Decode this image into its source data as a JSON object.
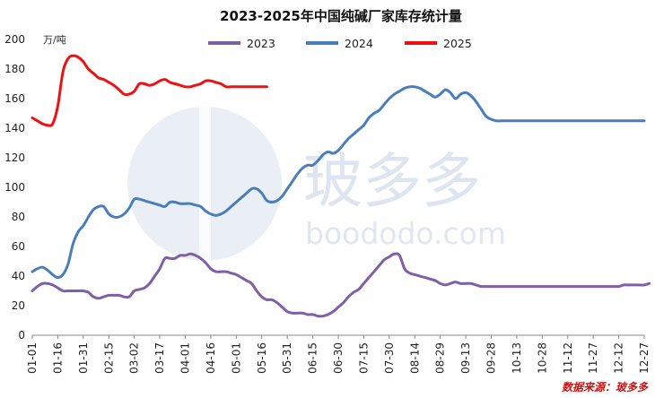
{
  "chart_data": {
    "type": "line",
    "title": "2023-2025年中国纯碱厂家库存统计量",
    "unit": "万/吨",
    "ylim": [
      0,
      200
    ],
    "yticks": [
      0,
      20,
      40,
      60,
      80,
      100,
      120,
      140,
      160,
      180,
      200
    ],
    "grid": false,
    "legend_position": "top",
    "x_tick_labels": [
      "01-01",
      "01-16",
      "01-31",
      "02-15",
      "03-02",
      "03-17",
      "04-01",
      "04-16",
      "05-01",
      "05-16",
      "05-31",
      "06-15",
      "06-30",
      "07-15",
      "07-30",
      "08-14",
      "08-29",
      "09-13",
      "09-28",
      "10-13",
      "10-28",
      "11-12",
      "11-27",
      "12-12",
      "12-27"
    ],
    "series": [
      {
        "name": "2023",
        "color": "#7f5fa8",
        "x": [
          0,
          3,
          6,
          9,
          12,
          15,
          18,
          21,
          24,
          27,
          30,
          33,
          36,
          39,
          42,
          45,
          48,
          51,
          54,
          57,
          60,
          63,
          66,
          69,
          72,
          75,
          78,
          81,
          84,
          87,
          90,
          93,
          96,
          99,
          102,
          105,
          108,
          111,
          114,
          117,
          120,
          123,
          126,
          129,
          132,
          135,
          138,
          141,
          144,
          147,
          150,
          153,
          156,
          159,
          162,
          165,
          168,
          171,
          174,
          177,
          180,
          183,
          186,
          189,
          192,
          195,
          198,
          201,
          204,
          207,
          210,
          213,
          216,
          219,
          222,
          225,
          228,
          231,
          234,
          237,
          240,
          243,
          246,
          249,
          252,
          255,
          258,
          261,
          264,
          267,
          270,
          273,
          276,
          279,
          282,
          285,
          288,
          291,
          294,
          297,
          300,
          303,
          306,
          309,
          312,
          315,
          318,
          321,
          324,
          327,
          330,
          333,
          336,
          339,
          342,
          345,
          348,
          351,
          354,
          357,
          360,
          363
        ],
        "values": [
          30,
          33,
          35,
          35,
          34,
          32,
          30,
          30,
          30,
          30,
          30,
          29,
          26,
          25,
          26,
          27,
          27,
          27,
          26,
          26,
          30,
          31,
          32,
          35,
          40,
          45,
          52,
          52,
          52,
          54,
          54,
          55,
          54,
          52,
          49,
          45,
          43,
          43,
          43,
          42,
          41,
          39,
          37,
          35,
          30,
          26,
          24,
          24,
          22,
          19,
          16,
          15,
          15,
          15,
          14,
          14,
          13,
          13,
          14,
          16,
          19,
          22,
          26,
          29,
          31,
          35,
          39,
          43,
          47,
          51,
          53,
          55,
          54,
          45,
          42,
          41,
          40,
          39,
          38,
          37,
          35,
          34,
          35,
          36,
          35,
          35,
          35,
          34,
          33,
          33,
          33,
          33,
          33,
          33,
          33,
          33,
          33,
          33,
          33,
          33,
          33,
          33,
          33,
          33,
          33,
          33,
          33,
          33,
          33,
          33,
          33,
          33,
          33,
          33,
          33,
          33,
          34,
          34,
          34,
          34,
          34,
          35
        ]
      },
      {
        "name": "2024",
        "color": "#4a7ebb",
        "x": [
          0,
          3,
          6,
          9,
          12,
          15,
          18,
          21,
          24,
          27,
          30,
          33,
          36,
          39,
          42,
          45,
          48,
          51,
          54,
          57,
          60,
          63,
          66,
          69,
          72,
          75,
          78,
          81,
          84,
          87,
          90,
          93,
          96,
          99,
          102,
          105,
          108,
          111,
          114,
          117,
          120,
          123,
          126,
          129,
          132,
          135,
          138,
          141,
          144,
          147,
          150,
          153,
          156,
          159,
          162,
          165,
          168,
          171,
          174,
          177,
          180,
          183,
          186,
          189,
          192,
          195,
          198,
          201,
          204,
          207,
          210,
          213,
          216,
          219,
          222,
          225,
          228,
          231,
          234,
          237,
          240,
          243,
          246,
          249,
          252,
          255,
          258,
          261,
          264,
          267,
          270,
          273,
          276,
          279,
          282,
          285,
          288,
          291,
          294,
          297,
          300,
          303,
          306,
          309,
          312,
          315,
          318,
          321,
          324,
          327,
          330,
          333,
          336,
          339,
          342,
          345,
          348,
          351,
          354,
          357,
          360
        ],
        "values": [
          43,
          45,
          46,
          44,
          41,
          39,
          41,
          48,
          62,
          70,
          74,
          80,
          85,
          87,
          87,
          82,
          80,
          80,
          82,
          86,
          92,
          92,
          91,
          90,
          89,
          88,
          87,
          90,
          90,
          89,
          89,
          89,
          88,
          87,
          84,
          82,
          81,
          82,
          84,
          87,
          90,
          93,
          96,
          99,
          99,
          96,
          91,
          90,
          91,
          94,
          99,
          104,
          109,
          113,
          115,
          115,
          118,
          122,
          124,
          123,
          125,
          129,
          133,
          136,
          139,
          142,
          147,
          150,
          152,
          156,
          160,
          163,
          165,
          167,
          168,
          168,
          167,
          165,
          163,
          161,
          163,
          166,
          164,
          160,
          163,
          164,
          162,
          158,
          153,
          148,
          146,
          145,
          145,
          145,
          145,
          145,
          145,
          145,
          145,
          145,
          145,
          145,
          145,
          145,
          145,
          145,
          145,
          145,
          145,
          145,
          145,
          145,
          145,
          145,
          145,
          145,
          145,
          145,
          145,
          145,
          145
        ]
      },
      {
        "name": "2025",
        "color": "#ee1111",
        "x": [
          0,
          3,
          6,
          9,
          12,
          15,
          18,
          21,
          24,
          27,
          30,
          33,
          36,
          39,
          42,
          45,
          48,
          51,
          54,
          57,
          60,
          63,
          66,
          69,
          72,
          75,
          78,
          81,
          84,
          87,
          90,
          93,
          96,
          99,
          102,
          105,
          108,
          111,
          114,
          117,
          120,
          123,
          126,
          129,
          132,
          135,
          138
        ],
        "values": [
          147,
          145,
          143,
          142,
          143,
          155,
          178,
          187,
          189,
          188,
          185,
          180,
          177,
          174,
          173,
          171,
          169,
          166,
          163,
          163,
          165,
          170,
          170,
          169,
          170,
          172,
          173,
          171,
          170,
          169,
          168,
          168,
          169,
          170,
          172,
          172,
          171,
          170,
          168,
          168,
          168,
          168,
          168,
          168,
          168,
          168,
          168
        ]
      }
    ]
  },
  "watermark": {
    "brand_cn": "玻多多",
    "brand_en": "boododo.com"
  },
  "source": {
    "label": "数据来源：玻多多",
    "color": "#cc1111"
  }
}
